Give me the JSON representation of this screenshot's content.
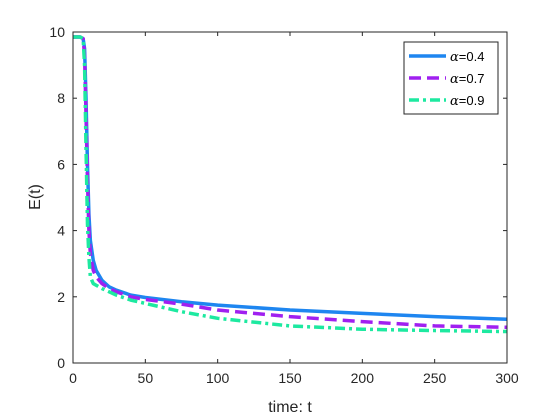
{
  "chart_data": {
    "type": "line",
    "xlabel": "time: t",
    "ylabel": "E(t)",
    "xlim": [
      0,
      300
    ],
    "ylim": [
      0,
      10
    ],
    "xticks": [
      0,
      50,
      100,
      150,
      200,
      250,
      300
    ],
    "yticks": [
      0,
      2,
      4,
      6,
      8,
      10
    ],
    "legend_position": "top-right",
    "grid": false,
    "series": [
      {
        "name": "0.4",
        "legend_prefix": "α",
        "color": "#1E86F0",
        "style": "solid",
        "x": [
          0,
          5,
          7,
          8,
          9,
          10,
          11,
          12,
          14,
          16,
          20,
          25,
          30,
          40,
          50,
          75,
          100,
          150,
          200,
          250,
          300
        ],
        "y": [
          9.85,
          9.85,
          9.8,
          9.5,
          8.0,
          6.0,
          4.5,
          3.7,
          3.1,
          2.8,
          2.5,
          2.3,
          2.2,
          2.05,
          1.98,
          1.85,
          1.75,
          1.6,
          1.5,
          1.4,
          1.32
        ]
      },
      {
        "name": "0.7",
        "legend_prefix": "α",
        "color": "#A020F0",
        "style": "dashed",
        "x": [
          0,
          5,
          7,
          8,
          9,
          10,
          11,
          12,
          14,
          16,
          20,
          25,
          30,
          40,
          50,
          75,
          100,
          150,
          200,
          250,
          300
        ],
        "y": [
          9.85,
          9.85,
          9.8,
          9.3,
          7.5,
          5.5,
          4.0,
          3.3,
          2.8,
          2.6,
          2.4,
          2.25,
          2.15,
          2.0,
          1.92,
          1.78,
          1.6,
          1.4,
          1.25,
          1.12,
          1.08
        ]
      },
      {
        "name": "0.9",
        "legend_prefix": "α",
        "color": "#1DE9A0",
        "style": "dashdot",
        "x": [
          0,
          5,
          7,
          8,
          9,
          10,
          11,
          12,
          14,
          16,
          20,
          25,
          30,
          40,
          50,
          75,
          100,
          150,
          200,
          250,
          300
        ],
        "y": [
          9.85,
          9.85,
          9.8,
          9.0,
          6.5,
          4.2,
          3.2,
          2.6,
          2.4,
          2.35,
          2.25,
          2.15,
          2.05,
          1.9,
          1.8,
          1.55,
          1.35,
          1.12,
          1.02,
          0.98,
          0.95
        ]
      }
    ]
  }
}
